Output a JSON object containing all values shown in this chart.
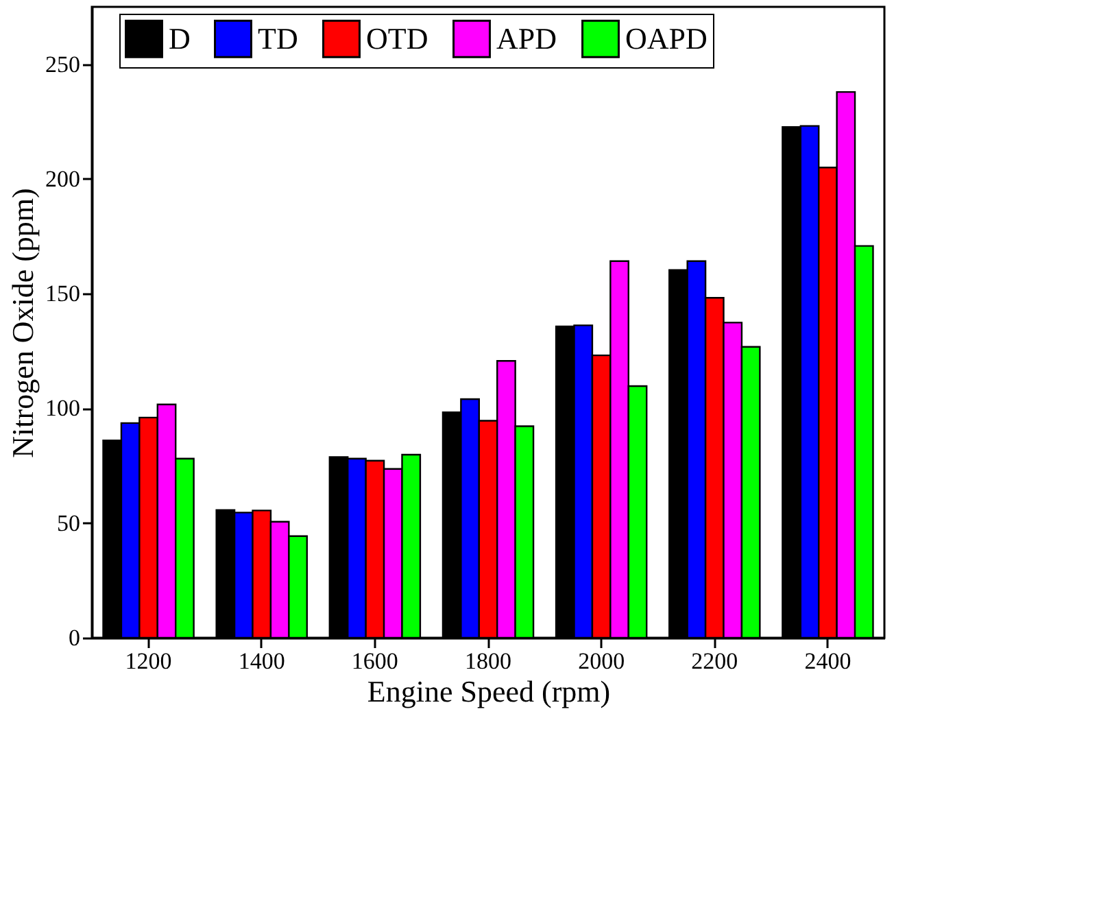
{
  "chart_data": {
    "type": "bar",
    "xlabel": "Engine Speed (rpm)",
    "ylabel": "Nitrogen Oxide (ppm)",
    "categories": [
      "1200",
      "1400",
      "1600",
      "1800",
      "2000",
      "2200",
      "2400"
    ],
    "series": [
      {
        "name": "D",
        "color": "#000000",
        "values": [
          86,
          55.7,
          78.8,
          98.3,
          135.7,
          160.3,
          222.6
        ]
      },
      {
        "name": "TD",
        "color": "#0000ff",
        "values": [
          93.6,
          54.6,
          78.1,
          104,
          136.2,
          164.2,
          223.1
        ]
      },
      {
        "name": "OTD",
        "color": "#ff0000",
        "values": [
          96,
          55.5,
          77.2,
          94.6,
          123.1,
          148.2,
          205
        ]
      },
      {
        "name": "APD",
        "color": "#ff00ff",
        "values": [
          101.7,
          50.6,
          73.6,
          120.7,
          164.2,
          137.4,
          237.9
        ]
      },
      {
        "name": "OAPD",
        "color": "#00ff00",
        "values": [
          78.1,
          44.3,
          79.8,
          92.2,
          109.7,
          126.8,
          170.8
        ]
      }
    ],
    "ylim": [
      0,
      275
    ],
    "yticks": [
      0,
      50,
      100,
      150,
      200,
      250
    ],
    "grid": false,
    "legend": "top"
  }
}
